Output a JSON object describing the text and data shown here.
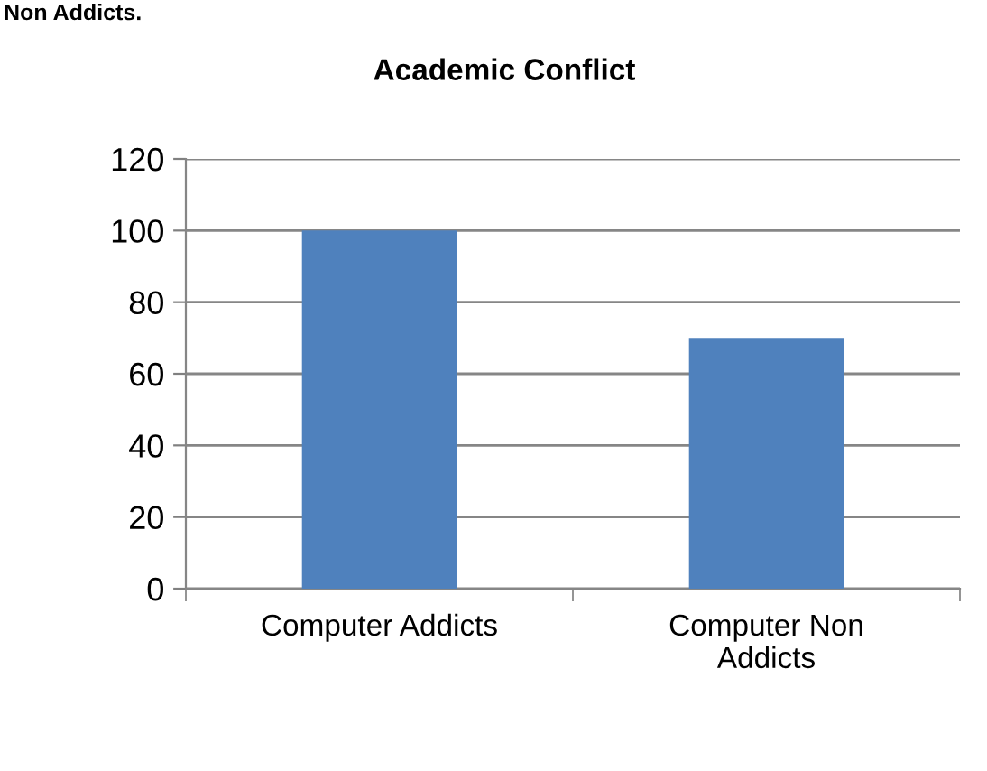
{
  "chart_data": {
    "type": "bar",
    "title": "Academic Conflict",
    "categories": [
      "Computer Addicts",
      "Computer Non Addicts"
    ],
    "values": [
      100,
      70
    ],
    "color": "#4f81bd",
    "ylim": [
      0,
      120
    ],
    "yticks": [
      0,
      20,
      40,
      60,
      80,
      100,
      120
    ],
    "grid": "y",
    "legend": false,
    "annotations": [
      "Non Addicts."
    ]
  }
}
